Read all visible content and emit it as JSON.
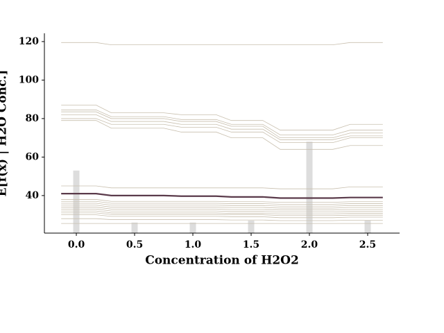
{
  "chart_data": {
    "type": "ice",
    "x_label": "Concentration of H2O2",
    "y_label": "E[f(x) | H2O Conc.]",
    "xlim": [
      -0.274,
      2.774
    ],
    "ylim": [
      20.5,
      124.3
    ],
    "xticks": [
      {
        "value": 0,
        "label": "0.0"
      },
      {
        "value": 0.5,
        "label": "0.5"
      },
      {
        "value": 1,
        "label": "1.0"
      },
      {
        "value": 1.5,
        "label": "1.5"
      },
      {
        "value": 2,
        "label": "2.0"
      },
      {
        "value": 2.5,
        "label": "2.5"
      }
    ],
    "yticks": [
      40,
      60,
      80,
      100,
      120
    ],
    "x": [
      -0.13,
      0.17,
      0.3,
      0.75,
      0.9,
      1.2,
      1.33,
      1.6,
      1.75,
      2.2,
      2.35,
      2.63
    ],
    "ice_color": "#c8bfae",
    "series": [
      {
        "values": [
          119.5,
          119.5,
          118.3,
          118.3,
          118.3,
          118.3,
          118.3,
          118.3,
          118.3,
          118.3,
          119.5,
          119.5
        ]
      },
      {
        "values": [
          87,
          87,
          83,
          83,
          82,
          82,
          79,
          79,
          74,
          74,
          77,
          77
        ]
      },
      {
        "values": [
          84.5,
          84.5,
          81,
          81,
          79.5,
          79.5,
          77,
          77,
          71.5,
          71.5,
          74,
          74
        ]
      },
      {
        "values": [
          83.5,
          83.5,
          80,
          80,
          78.5,
          78.5,
          76,
          76,
          70,
          70,
          72.5,
          72.5
        ]
      },
      {
        "values": [
          82,
          82,
          78.5,
          78.5,
          77,
          77,
          74.5,
          74.5,
          69,
          69,
          71,
          71
        ]
      },
      {
        "values": [
          80,
          80,
          77,
          77,
          75.5,
          75.5,
          73,
          73,
          67.5,
          67.5,
          70,
          70
        ]
      },
      {
        "values": [
          79,
          79,
          75,
          75,
          73,
          73,
          70,
          70,
          64,
          64,
          66,
          66
        ]
      },
      {
        "values": [
          45,
          45,
          44,
          44,
          44,
          44,
          44,
          44,
          43.5,
          43.5,
          44.5,
          44.5
        ]
      },
      {
        "values": [
          38,
          38,
          37,
          37,
          37,
          37,
          36.8,
          36.8,
          36.5,
          36.5,
          36.8,
          36.8
        ]
      },
      {
        "values": [
          37,
          37,
          36,
          36,
          36,
          36,
          35.8,
          35.8,
          35.5,
          35.5,
          35.8,
          35.8
        ]
      },
      {
        "values": [
          36,
          36,
          35,
          35,
          35,
          35,
          34.8,
          34.8,
          34.5,
          34.5,
          34.8,
          34.8
        ]
      },
      {
        "values": [
          35,
          35,
          34,
          34,
          34,
          34,
          33.8,
          33.8,
          33.5,
          33.5,
          33.8,
          33.8
        ]
      },
      {
        "values": [
          34,
          34,
          33,
          33,
          33,
          33,
          32.7,
          32.7,
          32.5,
          32.5,
          32.7,
          32.7
        ]
      },
      {
        "values": [
          33,
          33,
          32,
          32,
          32,
          32,
          31.7,
          31.7,
          31.5,
          31.5,
          31.7,
          31.7
        ]
      },
      {
        "values": [
          32,
          32,
          31,
          31,
          31,
          31,
          30.7,
          30.7,
          30.5,
          30.5,
          30.7,
          30.7
        ]
      },
      {
        "values": [
          31,
          31,
          30.2,
          30.2,
          30.2,
          30.2,
          30,
          30,
          29.6,
          29.6,
          29.8,
          29.8
        ]
      },
      {
        "values": [
          30,
          30,
          29.2,
          29.2,
          29.2,
          29.2,
          29,
          29,
          28.5,
          28.5,
          28.8,
          28.8
        ]
      },
      {
        "values": [
          28,
          28,
          27.5,
          27.5,
          27.5,
          27.5,
          27.3,
          27.3,
          27,
          27,
          27.2,
          27.2
        ]
      },
      {
        "values": [
          25.5,
          25.5,
          25.5,
          25.5,
          25.5,
          25.5,
          25.5,
          25.5,
          25.5,
          25.5,
          25.5,
          25.5
        ]
      }
    ],
    "mean_color": "#5a3a4a",
    "mean_values": [
      41,
      41,
      40,
      40,
      39.7,
      39.7,
      39.3,
      39.3,
      38.7,
      38.7,
      39,
      39
    ],
    "hist_color": "#dddddd",
    "hist_x": [
      0,
      0.5,
      1,
      1.5,
      2,
      2.5
    ],
    "hist_values": [
      53,
      26,
      26,
      27,
      68,
      27
    ]
  }
}
